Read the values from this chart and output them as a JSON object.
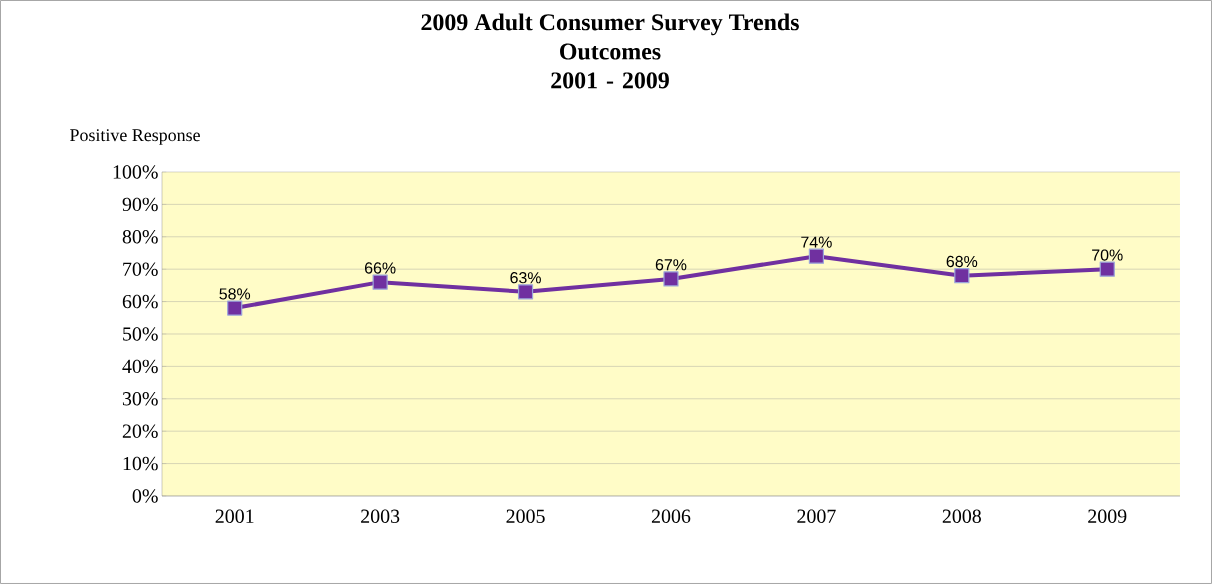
{
  "chart_data": {
    "type": "line",
    "title": "2009 Adult Consumer Survey Trends",
    "subtitle": "Outcomes 2001 - 2009",
    "ylabel": "Positive Response",
    "categories": [
      "2001",
      "2003",
      "2005",
      "2006",
      "2007",
      "2008",
      "2009"
    ],
    "values": [
      58,
      66,
      63,
      67,
      74,
      68,
      70
    ],
    "value_labels": [
      "58%",
      "66%",
      "63%",
      "67%",
      "74%",
      "68%",
      "70%"
    ],
    "color": "#7030a0",
    "marker": "square",
    "line_style": "solid",
    "grid": "y",
    "ylim": [
      0,
      100
    ],
    "yticks": [
      {
        "value": 0,
        "label": "0%"
      },
      {
        "value": 10,
        "label": "10%"
      },
      {
        "value": 20,
        "label": "20%"
      },
      {
        "value": 30,
        "label": "30%"
      },
      {
        "value": 40,
        "label": "40%"
      },
      {
        "value": 50,
        "label": "50%"
      },
      {
        "value": 60,
        "label": "60%"
      },
      {
        "value": 70,
        "label": "70%"
      },
      {
        "value": 80,
        "label": "80%"
      },
      {
        "value": 90,
        "label": "90%"
      },
      {
        "value": 100,
        "label": "100%"
      }
    ]
  }
}
